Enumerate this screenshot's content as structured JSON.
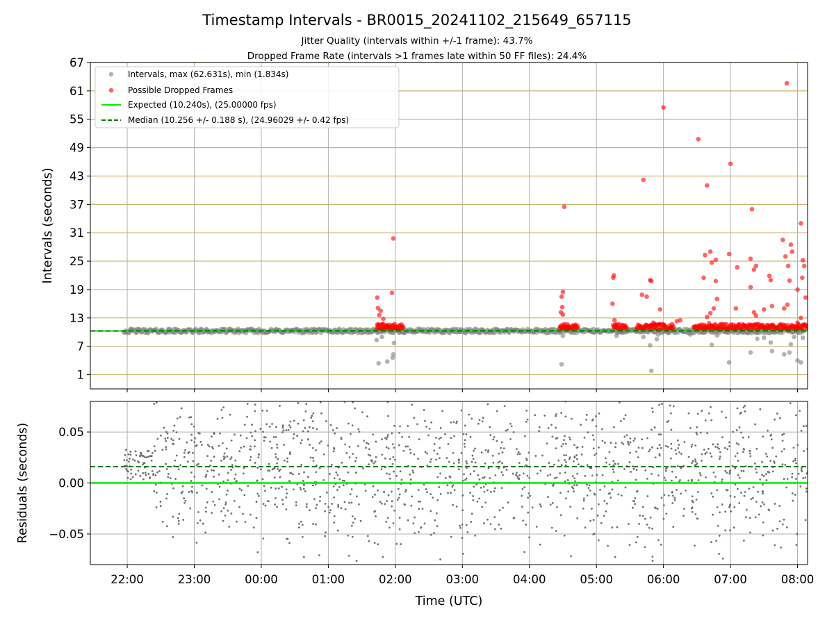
{
  "figure": {
    "title": "Timestamp Intervals - BR0015_20241102_215649_657115",
    "subtitle_1": "Jitter Quality (intervals within +/-1 frame): 43.7%",
    "subtitle_2": "Dropped Frame Rate (intervals >1 frames late within 50 FF files): 24.4%"
  },
  "colors": {
    "interval_points": "#808080",
    "dropped_points": "#ff0000",
    "expected_line": "#00ee00",
    "median_line": "#008000",
    "hgrid_top": "#c8b46e",
    "grid": "#b0b0b0"
  },
  "chart_data": [
    {
      "type": "scatter",
      "panel": "intervals",
      "ylabel": "Intervals (seconds)",
      "ylim": [
        -2,
        67
      ],
      "yticks": [
        1,
        7,
        13,
        19,
        25,
        31,
        37,
        43,
        49,
        55,
        61,
        67
      ],
      "ytick_labels": [
        "1",
        "7",
        "13",
        "19",
        "25",
        "31",
        "37",
        "43",
        "49",
        "55",
        "61",
        "67"
      ],
      "x_unit": "hours since 00:00 UTC",
      "xlim": [
        -2.55,
        8.15
      ],
      "xticks": [
        -2,
        -1,
        0,
        1,
        2,
        3,
        4,
        5,
        6,
        7,
        8
      ],
      "grid": true,
      "legend": {
        "placement": "upper-left",
        "entries": [
          "Intervals, max (62.631s), min (1.834s)",
          "Possible Dropped Frames",
          "Expected (10.240s), (25.00000 fps)",
          "Median (10.256 +/- 0.188 s), (24.96029 +/- 0.42 fps)"
        ]
      },
      "expected_interval": 10.24,
      "median_interval": 10.256,
      "series": [
        {
          "name": "Intervals, max (62.631s), min (1.834s)",
          "marker": "gray circle",
          "base_band": {
            "x_start": -2.05,
            "x_end": 8.1,
            "y_center": 10.24
          },
          "scattered_points": [
            [
              1.72,
              8.3
            ],
            [
              1.75,
              3.4
            ],
            [
              1.8,
              9.0
            ],
            [
              1.88,
              3.8
            ],
            [
              1.96,
              4.6
            ],
            [
              1.97,
              5.3
            ],
            [
              1.98,
              7.7
            ],
            [
              4.48,
              3.2
            ],
            [
              4.5,
              9.2
            ],
            [
              5.3,
              9.2
            ],
            [
              5.7,
              9.0
            ],
            [
              5.8,
              7.2
            ],
            [
              5.82,
              1.83
            ],
            [
              5.9,
              8.5
            ],
            [
              5.92,
              9.5
            ],
            [
              6.4,
              9.5
            ],
            [
              6.72,
              7.3
            ],
            [
              6.8,
              9.3
            ],
            [
              6.98,
              3.6
            ],
            [
              7.3,
              5.7
            ],
            [
              7.4,
              8.6
            ],
            [
              7.5,
              8.8
            ],
            [
              7.6,
              7.8
            ],
            [
              7.62,
              6.0
            ],
            [
              7.8,
              5.3
            ],
            [
              7.88,
              5.7
            ],
            [
              7.9,
              7.4
            ],
            [
              7.95,
              9.0
            ],
            [
              8.0,
              4.0
            ],
            [
              8.05,
              3.6
            ],
            [
              8.08,
              8.8
            ]
          ]
        },
        {
          "name": "Possible Dropped Frames",
          "marker": "red circle",
          "points": [
            [
              1.73,
              17.3
            ],
            [
              1.74,
              15.1
            ],
            [
              1.76,
              13.6
            ],
            [
              1.78,
              14.5
            ],
            [
              1.8,
              11.6
            ],
            [
              1.82,
              12.8
            ],
            [
              1.88,
              10.8
            ],
            [
              1.95,
              18.3
            ],
            [
              1.97,
              29.8
            ],
            [
              2.0,
              11.2
            ],
            [
              1.75,
              10.8
            ],
            [
              1.85,
              10.9
            ],
            [
              4.48,
              17.5
            ],
            [
              4.5,
              18.5
            ],
            [
              4.52,
              36.5
            ],
            [
              4.49,
              15.3
            ],
            [
              4.47,
              14.2
            ],
            [
              4.5,
              13.7
            ],
            [
              4.55,
              11.0
            ],
            [
              4.6,
              10.6
            ],
            [
              5.25,
              21.5
            ],
            [
              5.26,
              22.0
            ],
            [
              5.24,
              16.0
            ],
            [
              5.27,
              12.5
            ],
            [
              5.7,
              42.2
            ],
            [
              5.68,
              17.9
            ],
            [
              5.75,
              17.5
            ],
            [
              5.8,
              21.0
            ],
            [
              5.82,
              20.8
            ],
            [
              5.85,
              12.0
            ],
            [
              5.88,
              11.5
            ],
            [
              6.0,
              57.5
            ],
            [
              5.95,
              14.8
            ],
            [
              6.1,
              11.0
            ],
            [
              6.2,
              12.3
            ],
            [
              6.25,
              12.5
            ],
            [
              6.52,
              50.8
            ],
            [
              6.65,
              41.0
            ],
            [
              6.62,
              26.3
            ],
            [
              6.6,
              21.5
            ],
            [
              6.7,
              27.0
            ],
            [
              6.72,
              24.7
            ],
            [
              6.78,
              25.3
            ],
            [
              6.78,
              20.8
            ],
            [
              6.8,
              17.0
            ],
            [
              6.75,
              15.0
            ],
            [
              6.65,
              13.2
            ],
            [
              6.7,
              14.0
            ],
            [
              6.68,
              11.9
            ],
            [
              6.98,
              26.5
            ],
            [
              7.0,
              45.6
            ],
            [
              7.08,
              15.0
            ],
            [
              7.1,
              23.7
            ],
            [
              7.3,
              25.5
            ],
            [
              7.32,
              36.0
            ],
            [
              7.35,
              23.2
            ],
            [
              7.38,
              24.0
            ],
            [
              7.3,
              19.5
            ],
            [
              7.35,
              14.2
            ],
            [
              7.38,
              13.5
            ],
            [
              7.5,
              14.8
            ],
            [
              7.58,
              21.9
            ],
            [
              7.6,
              21.0
            ],
            [
              7.62,
              15.5
            ],
            [
              7.78,
              29.5
            ],
            [
              7.82,
              26.0
            ],
            [
              7.84,
              62.6
            ],
            [
              7.86,
              24.0
            ],
            [
              7.88,
              20.9
            ],
            [
              7.9,
              28.5
            ],
            [
              7.92,
              27.0
            ],
            [
              7.85,
              15.8
            ],
            [
              7.8,
              15.0
            ],
            [
              8.0,
              19.0
            ],
            [
              8.05,
              33.0
            ],
            [
              8.07,
              21.5
            ],
            [
              8.08,
              25.2
            ],
            [
              8.1,
              24.0
            ],
            [
              8.12,
              17.3
            ],
            [
              8.05,
              13.0
            ],
            [
              8.0,
              12.0
            ]
          ],
          "dense_bands": [
            {
              "x_start": 1.72,
              "x_end": 2.12
            },
            {
              "x_start": 4.45,
              "x_end": 4.72
            },
            {
              "x_start": 5.25,
              "x_end": 5.45
            },
            {
              "x_start": 5.6,
              "x_end": 6.15
            },
            {
              "x_start": 6.45,
              "x_end": 8.15
            }
          ]
        },
        {
          "name": "Expected (10.240s), (25.00000 fps)",
          "type": "line",
          "y": 10.24,
          "style": "solid"
        },
        {
          "name": "Median (10.256 +/- 0.188 s), (24.96029 +/- 0.42 fps)",
          "type": "line",
          "y": 10.256,
          "style": "dashed"
        }
      ]
    },
    {
      "type": "scatter",
      "panel": "residuals",
      "ylabel": "Residuals (seconds)",
      "xlabel": "Time (UTC)",
      "ylim": [
        -0.08,
        0.08
      ],
      "yticks": [
        -0.05,
        0.0,
        0.05
      ],
      "ytick_labels": [
        "−0.05",
        "0.00",
        "0.05"
      ],
      "x_unit": "hours since 00:00 UTC",
      "xlim": [
        -2.55,
        8.15
      ],
      "xticks": [
        -2,
        -1,
        0,
        1,
        2,
        3,
        4,
        5,
        6,
        7,
        8
      ],
      "xtick_labels": [
        "22:00",
        "23:00",
        "00:00",
        "01:00",
        "02:00",
        "03:00",
        "04:00",
        "05:00",
        "06:00",
        "07:00",
        "08:00"
      ],
      "grid": true,
      "residual_spread": {
        "x_start": -2.05,
        "x_end": 8.15,
        "y_min": -0.08,
        "y_max": 0.08
      },
      "series": [
        {
          "name": "Expected",
          "type": "line",
          "y": 0.0,
          "style": "solid"
        },
        {
          "name": "Median",
          "type": "line",
          "y": 0.016,
          "style": "dashed"
        }
      ]
    }
  ]
}
